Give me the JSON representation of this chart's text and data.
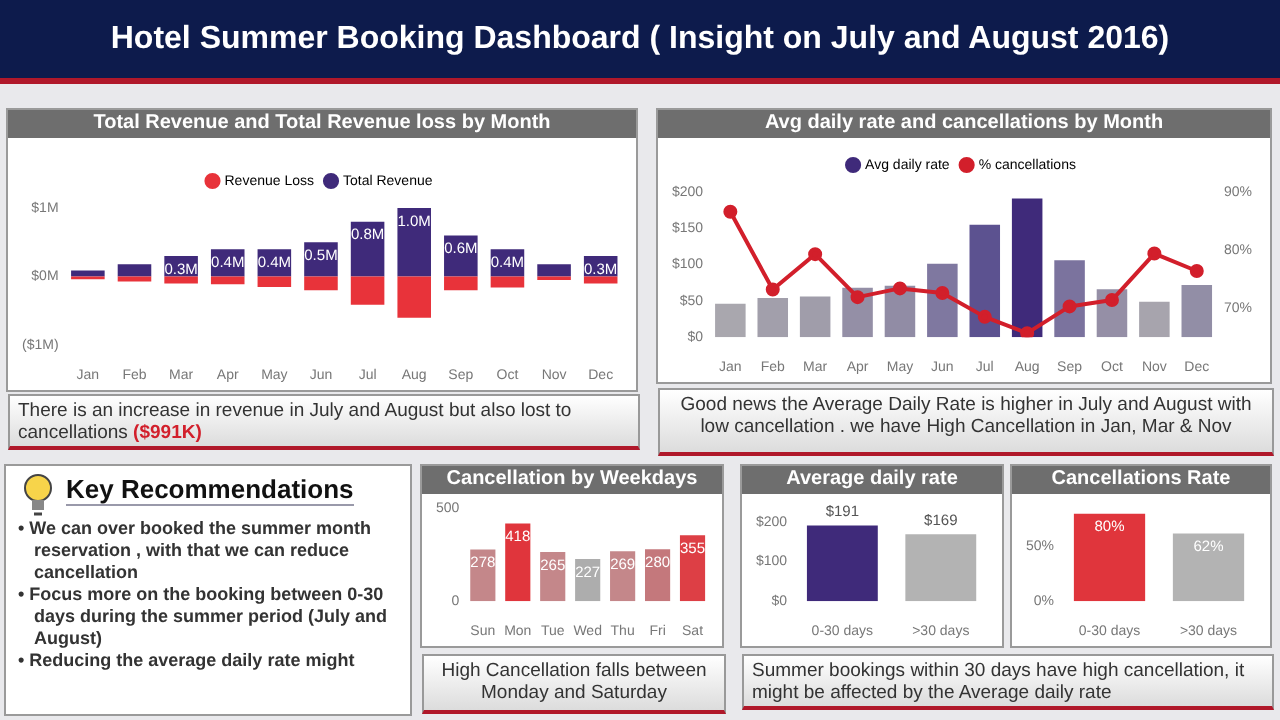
{
  "chart_data": [
    {
      "type": "other",
      "title": "Hotel Summer Booking Dashboard ( Insight on July and August 2016)"
    },
    {
      "type": "bar",
      "title": "Total Revenue and Total Revenue loss by Month",
      "categories": [
        "Jan",
        "Feb",
        "Mar",
        "Apr",
        "May",
        "Jun",
        "Jul",
        "Aug",
        "Sep",
        "Oct",
        "Nov",
        "Dec"
      ],
      "stacked": true,
      "legend": "top",
      "series": [
        {
          "name": "Revenue Loss",
          "color": "#e8333a",
          "values": [
            -0.04,
            -0.07,
            -0.1,
            -0.11,
            -0.15,
            -0.2,
            -0.41,
            -0.6,
            -0.2,
            -0.16,
            -0.05,
            -0.1
          ]
        },
        {
          "name": "Total Revenue",
          "color": "#3f2a7a",
          "values": [
            0.09,
            0.18,
            0.3,
            0.4,
            0.4,
            0.5,
            0.8,
            1.0,
            0.6,
            0.4,
            0.18,
            0.3
          ],
          "value_labels": [
            null,
            null,
            "0.3M",
            "0.4M",
            "0.4M",
            "0.5M",
            "0.8M",
            "1.0M",
            "0.6M",
            "0.4M",
            null,
            "0.3M"
          ]
        }
      ],
      "ylim": [
        -1,
        1
      ],
      "yticks": [
        {
          "value": 1,
          "label": "$1M"
        },
        {
          "value": 0,
          "label": "$0M"
        },
        {
          "value": -1,
          "label": "($1M)"
        }
      ],
      "annotations": [
        "There is an increase in revenue in July and August but also  lost to cancellations",
        "($991K)"
      ]
    },
    {
      "type": "bar",
      "title": "Avg daily rate and cancellations by Month",
      "categories": [
        "Jan",
        "Feb",
        "Mar",
        "Apr",
        "May",
        "Jun",
        "Jul",
        "Aug",
        "Sep",
        "Oct",
        "Nov",
        "Dec"
      ],
      "legend": "top",
      "marker": "circle",
      "series": [
        {
          "name": "Avg daily rate",
          "color": "#3f2a7a",
          "colors": [
            "#a9a7ae",
            "#a29fab",
            "#a09daa",
            "#948fa6",
            "#918ca5",
            "#7f78a0",
            "#5c5290",
            "#3f2a7a",
            "#7b739e",
            "#958fa6",
            "#a7a4ad",
            "#928ea6"
          ],
          "values": [
            46,
            54,
            56,
            68,
            71,
            101,
            155,
            191,
            106,
            66,
            49,
            72
          ]
        },
        {
          "name": "% cancellations",
          "type": "line",
          "axis": "y2",
          "color": "#d21f2b",
          "values": [
            86.6,
            73.2,
            79.3,
            71.9,
            73.4,
            72.6,
            68.5,
            65.7,
            70.3,
            71.4,
            79.4,
            76.4
          ]
        }
      ],
      "ylim": [
        0,
        200
      ],
      "yticks": [
        {
          "value": 0,
          "label": "$0"
        },
        {
          "value": 50,
          "label": "$50"
        },
        {
          "value": 100,
          "label": "$100"
        },
        {
          "value": 150,
          "label": "$150"
        },
        {
          "value": 200,
          "label": "$200"
        }
      ],
      "y2lim": [
        65,
        90
      ],
      "y2ticks": [
        {
          "value": 70,
          "label": "70%"
        },
        {
          "value": 80,
          "label": "80%"
        },
        {
          "value": 90,
          "label": "90%"
        }
      ],
      "annotations": [
        "Good news the Average Daily Rate is higher in July and August  with low cancellation . we have High Cancellation in Jan, Mar & Nov"
      ]
    },
    {
      "type": "other",
      "title": "Key Recommendations",
      "annotations": [
        "• We can over booked the summer month reservation , with that we can reduce cancellation",
        "• Focus more on the booking between 0-30 days during the summer period (July and August)",
        "• Reducing the average daily rate might"
      ]
    },
    {
      "type": "bar",
      "title": "Cancellation by Weekdays",
      "categories": [
        "Sun",
        "Mon",
        "Tue",
        "Wed",
        "Thu",
        "Fri",
        "Sat"
      ],
      "values": [
        278,
        418,
        265,
        227,
        269,
        280,
        355
      ],
      "colors": [
        "#c4878a",
        "#e0353c",
        "#c4878a",
        "#adadad",
        "#c4878a",
        "#c4787c",
        "#dd3f45"
      ],
      "data_labels": true,
      "ylim": [
        0,
        500
      ],
      "yticks": [
        0,
        500
      ],
      "annotations": [
        "High Cancellation falls between Monday and Saturday"
      ]
    },
    {
      "type": "bar",
      "title": "Average daily rate",
      "categories": [
        "0-30 days",
        ">30 days"
      ],
      "values": [
        191,
        169
      ],
      "colors": [
        "#3f2a7a",
        "#b3b3b3"
      ],
      "value_labels": [
        "$191",
        "$169"
      ],
      "ylim": [
        0,
        200
      ],
      "yticks": [
        {
          "value": 0,
          "label": "$0"
        },
        {
          "value": 100,
          "label": "$100"
        },
        {
          "value": 200,
          "label": "$200"
        }
      ],
      "annotations": [
        "Summer bookings within 30 days have high cancellation, it might be affected by the Average daily rate"
      ]
    },
    {
      "type": "bar",
      "title": "Cancellations Rate",
      "categories": [
        "0-30 days",
        ">30 days"
      ],
      "values": [
        80,
        62
      ],
      "colors": [
        "#e0353c",
        "#b3b3b3"
      ],
      "value_labels": [
        "80%",
        "62%"
      ],
      "ylim": [
        0,
        85
      ],
      "yticks": [
        {
          "value": 0,
          "label": "0%"
        },
        {
          "value": 50,
          "label": "50%"
        }
      ]
    }
  ]
}
